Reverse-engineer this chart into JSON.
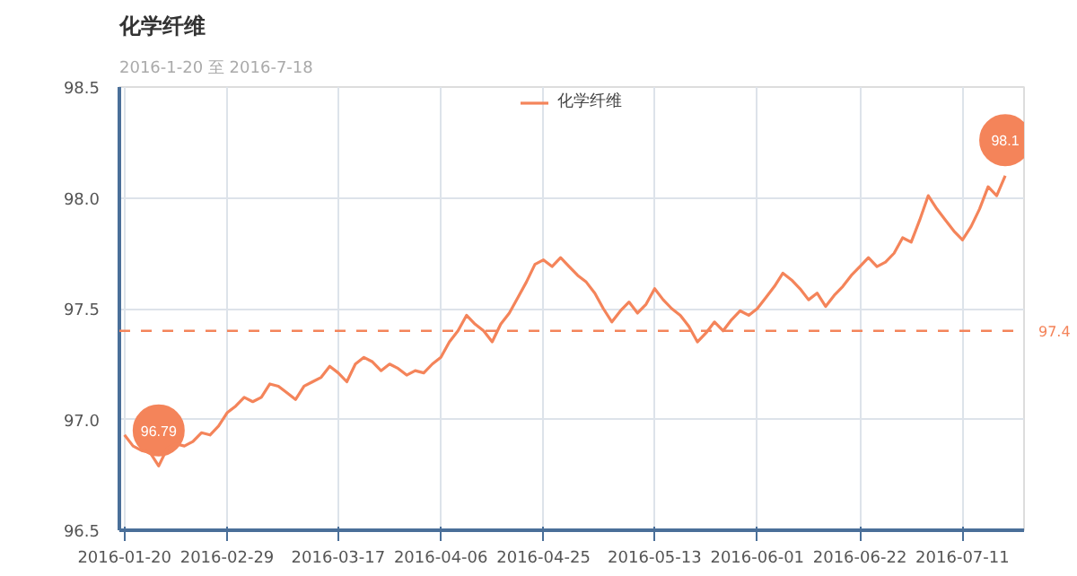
{
  "chart_data": {
    "type": "line",
    "title": "化学纤维",
    "subtitle": "2016-1-20 至 2016-7-18",
    "categories": [
      "2016-01-20",
      null,
      null,
      null,
      null,
      null,
      null,
      null,
      null,
      null,
      null,
      null,
      "2016-02-29",
      null,
      null,
      null,
      null,
      null,
      null,
      null,
      null,
      null,
      null,
      null,
      null,
      "2016-03-17",
      null,
      null,
      null,
      null,
      null,
      null,
      null,
      null,
      null,
      null,
      null,
      "2016-04-06",
      null,
      null,
      null,
      null,
      null,
      null,
      null,
      null,
      null,
      null,
      null,
      "2016-04-25",
      null,
      null,
      null,
      null,
      null,
      null,
      null,
      null,
      null,
      null,
      null,
      null,
      "2016-05-13",
      null,
      null,
      null,
      null,
      null,
      null,
      null,
      null,
      null,
      null,
      null,
      "2016-06-01",
      null,
      null,
      null,
      null,
      null,
      null,
      null,
      null,
      null,
      null,
      null,
      "2016-06-22",
      null,
      null,
      null,
      null,
      null,
      null,
      null,
      null,
      null,
      null,
      null,
      "2016-07-11",
      null,
      null,
      null,
      null,
      null
    ],
    "series": [
      {
        "name": "化学纤维",
        "color": "#f4845a",
        "values": [
          96.93,
          96.88,
          96.86,
          96.85,
          96.79,
          96.87,
          96.89,
          96.88,
          96.9,
          96.94,
          96.93,
          96.97,
          97.03,
          97.06,
          97.1,
          97.08,
          97.1,
          97.16,
          97.15,
          97.12,
          97.09,
          97.15,
          97.17,
          97.19,
          97.24,
          97.21,
          97.17,
          97.25,
          97.28,
          97.26,
          97.22,
          97.25,
          97.23,
          97.2,
          97.22,
          97.21,
          97.25,
          97.28,
          97.35,
          97.4,
          97.47,
          97.43,
          97.4,
          97.35,
          97.43,
          97.48,
          97.55,
          97.62,
          97.7,
          97.72,
          97.69,
          97.73,
          97.69,
          97.65,
          97.62,
          97.57,
          97.5,
          97.44,
          97.49,
          97.53,
          97.48,
          97.52,
          97.59,
          97.54,
          97.5,
          97.47,
          97.42,
          97.35,
          97.39,
          97.44,
          97.4,
          97.45,
          97.49,
          97.47,
          97.5,
          97.55,
          97.6,
          97.66,
          97.63,
          97.59,
          97.54,
          97.57,
          97.51,
          97.56,
          97.6,
          97.65,
          97.69,
          97.73,
          97.69,
          97.71,
          97.75,
          97.82,
          97.8,
          97.9,
          98.01,
          97.95,
          97.9,
          97.85,
          97.81,
          97.87,
          97.95,
          98.05,
          98.01,
          98.1
        ]
      }
    ],
    "ylim": [
      96.5,
      98.5
    ],
    "yticks": [
      96.5,
      {
        "value": 97,
        "label": "97.0"
      },
      97.5,
      {
        "value": 98,
        "label": "98.0"
      },
      98.5
    ],
    "annotations": [
      {
        "text": "96.79",
        "y": 96.79
      },
      {
        "text": "98.1",
        "y": 98.1
      }
    ],
    "ref_lines": [
      {
        "axis": "y",
        "value": 97.4,
        "label": "97.4",
        "color": "#f4845a",
        "line_style": "dashed"
      }
    ],
    "grid": true,
    "legend": "top",
    "marker": "none",
    "line_style": "solid"
  }
}
